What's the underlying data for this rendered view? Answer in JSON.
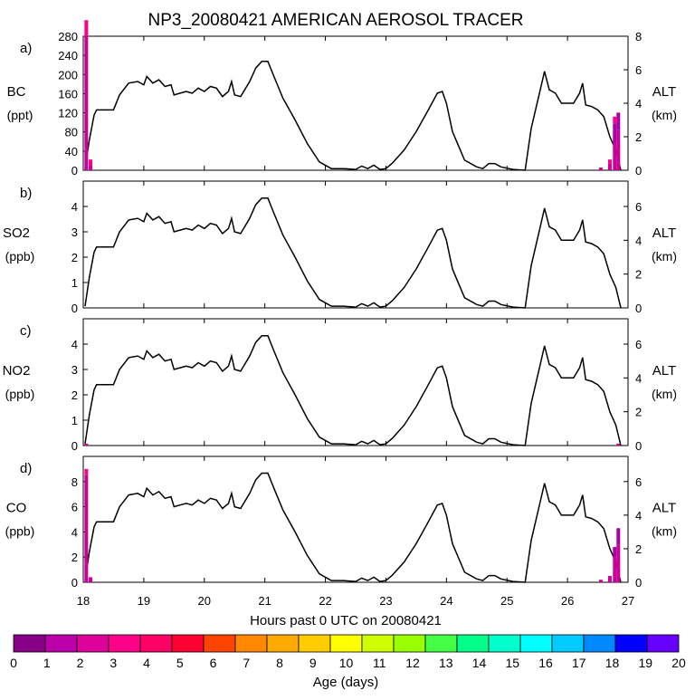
{
  "chart_data": {
    "type": "line",
    "title": "NP3_20080421 AMERICAN AEROSOL TRACER",
    "xlabel": "Hours past 0 UTC on 20080421",
    "xlim": [
      18,
      27
    ],
    "x_ticks": [
      18,
      19,
      20,
      21,
      22,
      23,
      24,
      25,
      26,
      27
    ],
    "right_axis": {
      "label": "ALT",
      "unit": "(km)"
    },
    "altitude_profile": {
      "x": [
        18.03,
        18.1,
        18.18,
        18.22,
        18.35,
        18.5,
        18.6,
        18.75,
        18.9,
        19.0,
        19.05,
        19.15,
        19.25,
        19.35,
        19.45,
        19.5,
        19.6,
        19.7,
        19.8,
        19.9,
        20.0,
        20.1,
        20.2,
        20.3,
        20.4,
        20.45,
        20.5,
        20.6,
        20.75,
        20.85,
        20.95,
        21.05,
        21.15,
        21.3,
        21.5,
        21.7,
        21.9,
        22.1,
        22.3,
        22.5,
        22.6,
        22.7,
        22.8,
        22.9,
        23.0,
        23.1,
        23.3,
        23.5,
        23.7,
        23.85,
        23.93,
        24.0,
        24.1,
        24.3,
        24.5,
        24.6,
        24.7,
        24.8,
        24.9,
        25.1,
        25.3,
        25.4,
        25.55,
        25.62,
        25.7,
        25.8,
        25.9,
        26.1,
        26.2,
        26.25,
        26.3,
        26.4,
        26.5,
        26.6,
        26.7,
        26.8,
        26.88
      ],
      "km": [
        0.1,
        1.8,
        3.3,
        3.6,
        3.6,
        3.6,
        4.5,
        5.2,
        5.3,
        5.1,
        5.6,
        5.2,
        5.4,
        5.0,
        5.1,
        4.5,
        4.6,
        4.7,
        4.6,
        4.9,
        4.7,
        5.0,
        4.9,
        4.4,
        4.7,
        5.3,
        4.5,
        4.4,
        5.3,
        6.1,
        6.5,
        6.5,
        5.6,
        4.3,
        3.0,
        1.6,
        0.5,
        0.1,
        0.1,
        0.05,
        0.25,
        0.1,
        0.3,
        0.05,
        0.1,
        0.4,
        1.2,
        2.3,
        3.6,
        4.6,
        4.7,
        4.0,
        2.3,
        0.6,
        0.2,
        0.1,
        0.4,
        0.4,
        0.2,
        0.05,
        0.0,
        2.5,
        4.8,
        5.9,
        4.8,
        4.6,
        4.0,
        4.0,
        4.6,
        5.2,
        3.9,
        3.8,
        3.6,
        3.2,
        2.0,
        1.2,
        0.0
      ]
    },
    "panels": [
      {
        "label": "a)",
        "species": "BC",
        "unit": "(ppt)",
        "ylim": [
          0,
          280
        ],
        "y_ticks": [
          "0",
          "40",
          "80",
          "120",
          "160",
          "200",
          "240",
          "280"
        ],
        "alt_max": 8,
        "alt_ticks": [
          "0",
          "2",
          "4",
          "6",
          "8"
        ]
      },
      {
        "label": "b)",
        "species": "SO2",
        "unit": "(ppb)",
        "ylim": [
          0,
          5
        ],
        "y_ticks": [
          "0",
          "1",
          "2",
          "3",
          "4"
        ],
        "alt_max": 7.5,
        "alt_ticks": [
          "0",
          "2",
          "4",
          "6"
        ]
      },
      {
        "label": "c)",
        "species": "NO2",
        "unit": "(ppb)",
        "ylim": [
          0,
          5
        ],
        "y_ticks": [
          "0",
          "1",
          "2",
          "3",
          "4"
        ],
        "alt_max": 7.5,
        "alt_ticks": [
          "0",
          "2",
          "4",
          "6"
        ]
      },
      {
        "label": "d)",
        "species": "CO",
        "unit": "(ppb)",
        "ylim": [
          0,
          10
        ],
        "y_ticks": [
          "0",
          "2",
          "4",
          "6",
          "8"
        ],
        "alt_max": 7.5,
        "alt_ticks": [
          "0",
          "2",
          "4",
          "6"
        ]
      }
    ],
    "age_bars": [
      {
        "panel": 0,
        "x": 18.05,
        "values": [
          0.15,
          0.85,
          0.12
        ],
        "colors": [
          "#cc0099",
          "#cc0099",
          "#ff0088"
        ]
      },
      {
        "panel": 0,
        "x": 18.12,
        "values": [
          0.04,
          0.04
        ],
        "colors": [
          "#cc0099",
          "#ff0088"
        ]
      },
      {
        "panel": 0,
        "x": 26.55,
        "values": [
          0.02
        ],
        "colors": [
          "#cc0099"
        ]
      },
      {
        "panel": 0,
        "x": 26.7,
        "values": [
          0.05,
          0.03
        ],
        "colors": [
          "#cc0099",
          "#ff0088"
        ]
      },
      {
        "panel": 0,
        "x": 26.78,
        "values": [
          0.2,
          0.15,
          0.05
        ],
        "colors": [
          "#cc0099",
          "#aa00aa",
          "#ff0088"
        ]
      },
      {
        "panel": 0,
        "x": 26.84,
        "values": [
          0.3,
          0.13
        ],
        "colors": [
          "#cc0099",
          "#aa00aa"
        ]
      },
      {
        "panel": 2,
        "x": 18.05,
        "values": [
          0.015
        ],
        "colors": [
          "#cc0099"
        ]
      },
      {
        "panel": 2,
        "x": 26.84,
        "values": [
          0.015
        ],
        "colors": [
          "#cc0099"
        ]
      },
      {
        "panel": 3,
        "x": 18.05,
        "values": [
          0.15,
          0.7,
          0.05
        ],
        "colors": [
          "#cc0099",
          "#cc0099",
          "#ff0088"
        ]
      },
      {
        "panel": 3,
        "x": 18.12,
        "values": [
          0.04
        ],
        "colors": [
          "#cc0099"
        ]
      },
      {
        "panel": 3,
        "x": 26.55,
        "values": [
          0.02
        ],
        "colors": [
          "#cc0099"
        ]
      },
      {
        "panel": 3,
        "x": 26.7,
        "values": [
          0.05
        ],
        "colors": [
          "#cc0099"
        ]
      },
      {
        "panel": 3,
        "x": 26.78,
        "values": [
          0.2,
          0.08
        ],
        "colors": [
          "#cc0099",
          "#aa00aa"
        ]
      },
      {
        "panel": 3,
        "x": 26.84,
        "values": [
          0.3,
          0.13
        ],
        "colors": [
          "#cc0099",
          "#aa00aa"
        ]
      }
    ],
    "colorbar": {
      "label": "Age (days)",
      "ticks": [
        "0",
        "1",
        "2",
        "3",
        "4",
        "5",
        "6",
        "7",
        "8",
        "9",
        "10",
        "11",
        "12",
        "13",
        "14",
        "15",
        "16",
        "17",
        "18",
        "19",
        "20"
      ],
      "colors": [
        "#880088",
        "#bb00aa",
        "#dd0099",
        "#ff0088",
        "#ff0066",
        "#ff0033",
        "#ff4400",
        "#ff8800",
        "#ffaa00",
        "#ffcc00",
        "#ffff00",
        "#ccff00",
        "#99ff00",
        "#44ff44",
        "#00ff88",
        "#00ffcc",
        "#00ffff",
        "#00ccff",
        "#0088ff",
        "#0000ff",
        "#6600ff"
      ]
    }
  }
}
